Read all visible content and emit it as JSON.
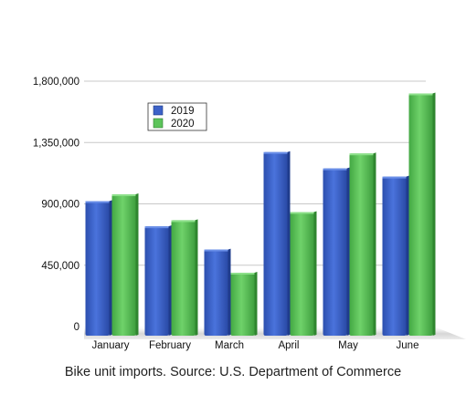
{
  "chart_data": {
    "type": "bar",
    "categories": [
      "January",
      "February",
      "March",
      "April",
      "May",
      "June"
    ],
    "series": [
      {
        "name": "2019",
        "values": [
          920000,
          735000,
          565000,
          1280000,
          1160000,
          1100000
        ],
        "color": "#3c62c8"
      },
      {
        "name": "2020",
        "values": [
          970000,
          780000,
          395000,
          840000,
          1270000,
          1710000
        ],
        "color": "#5cc45a"
      }
    ],
    "yticks": [
      "0",
      "450,000",
      "900,000",
      "1,350,000",
      "1,800,000"
    ],
    "ylim": [
      0,
      1800000
    ],
    "legend_position": "top-left",
    "grid": true,
    "title": "",
    "xlabel": "",
    "ylabel": "",
    "caption": "Bike unit imports. Source: U.S. Department of Commerce"
  }
}
